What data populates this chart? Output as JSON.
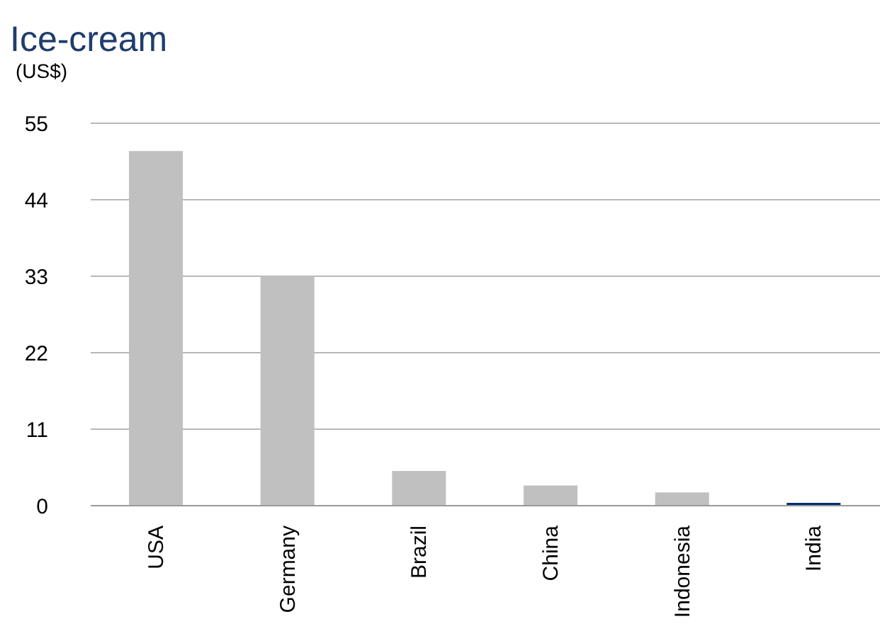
{
  "chart_data": {
    "type": "bar",
    "title": "Ice-cream",
    "ylabel": "(US$)",
    "categories": [
      "USA",
      "Germany",
      "Brazil",
      "China",
      "Indonesia",
      "India"
    ],
    "values": [
      51,
      33,
      5,
      2.9,
      1.9,
      0.4
    ],
    "colors": [
      "#c0c0c0",
      "#c0c0c0",
      "#c0c0c0",
      "#c0c0c0",
      "#c0c0c0",
      "#002f6c"
    ],
    "ylim": [
      0,
      55
    ],
    "yticks": [
      0,
      11,
      22,
      33,
      44,
      55
    ],
    "grid": "y",
    "legend": false
  }
}
